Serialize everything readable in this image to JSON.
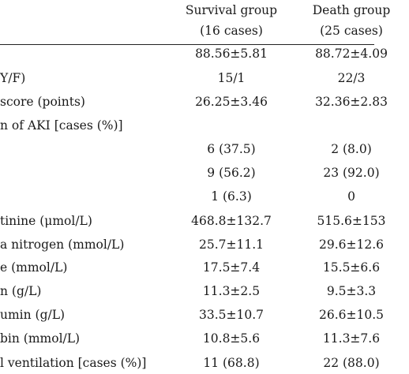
{
  "table": {
    "headers": {
      "survival": [
        "Survival group",
        "(16 cases)"
      ],
      "death": [
        "Death group",
        "(25 cases)"
      ]
    },
    "rows": [
      {
        "label": "",
        "survival": "88.56±5.81",
        "death": "88.72±4.09"
      },
      {
        "label": "Y/F)",
        "survival": "15/1",
        "death": "22/3"
      },
      {
        "label": "score (points)",
        "survival": "26.25±3.46",
        "death": "32.36±2.83"
      },
      {
        "label": "n of AKI [cases (%)]",
        "survival": "",
        "death": ""
      },
      {
        "label": "",
        "survival": "6 (37.5)",
        "death": "2 (8.0)"
      },
      {
        "label": "",
        "survival": "9 (56.2)",
        "death": "23 (92.0)"
      },
      {
        "label": "",
        "survival": "1 (6.3)",
        "death": "0"
      },
      {
        "label": "tinine (μmol/L)",
        "survival": "468.8±132.7",
        "death": "515.6±153"
      },
      {
        "label": "a nitrogen (mmol/L)",
        "survival": "25.7±11.1",
        "death": "29.6±12.6"
      },
      {
        "label": "e (mmol/L)",
        "survival": "17.5±7.4",
        "death": "15.5±6.6"
      },
      {
        "label": "n (g/L)",
        "survival": "11.3±2.5",
        "death": "9.5±3.3"
      },
      {
        "label": "umin (g/L)",
        "survival": "33.5±10.7",
        "death": "26.6±10.5"
      },
      {
        "label": "bin (mmol/L)",
        "survival": "10.8±5.6",
        "death": "11.3±7.6"
      },
      {
        "label": "l ventilation [cases (%)]",
        "survival": "11 (68.8)",
        "death": "22 (88.0)"
      }
    ]
  }
}
